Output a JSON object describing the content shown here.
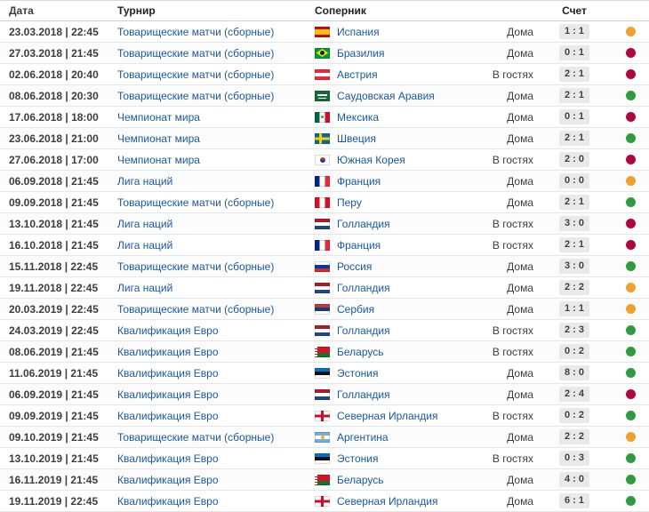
{
  "result_colors": {
    "win": "#2d9c3c",
    "draw": "#efa12e",
    "loss": "#b0063d"
  },
  "table": {
    "headers": {
      "date": "Дата",
      "tournament": "Турнир",
      "opponent": "Соперник",
      "score": "Счет"
    },
    "venue_options": [
      "Дома",
      "В гостях"
    ],
    "rows": [
      {
        "date": "23.03.2018 | 22:45",
        "tournament": "Товарищеские матчи (сборные)",
        "opponent": "Испания",
        "flag": "es",
        "venue": "Дома",
        "score": "1 : 1",
        "result": "draw"
      },
      {
        "date": "27.03.2018 | 21:45",
        "tournament": "Товарищеские матчи (сборные)",
        "opponent": "Бразилия",
        "flag": "br",
        "venue": "Дома",
        "score": "0 : 1",
        "result": "loss"
      },
      {
        "date": "02.06.2018 | 20:40",
        "tournament": "Товарищеские матчи (сборные)",
        "opponent": "Австрия",
        "flag": "at",
        "venue": "В гостях",
        "score": "2 : 1",
        "result": "loss"
      },
      {
        "date": "08.06.2018 | 20:30",
        "tournament": "Товарищеские матчи (сборные)",
        "opponent": "Саудовская Аравия",
        "flag": "sa",
        "venue": "Дома",
        "score": "2 : 1",
        "result": "win"
      },
      {
        "date": "17.06.2018 | 18:00",
        "tournament": "Чемпионат мира",
        "opponent": "Мексика",
        "flag": "mx",
        "venue": "Дома",
        "score": "0 : 1",
        "result": "loss"
      },
      {
        "date": "23.06.2018 | 21:00",
        "tournament": "Чемпионат мира",
        "opponent": "Швеция",
        "flag": "se",
        "venue": "Дома",
        "score": "2 : 1",
        "result": "win"
      },
      {
        "date": "27.06.2018 | 17:00",
        "tournament": "Чемпионат мира",
        "opponent": "Южная Корея",
        "flag": "kr",
        "venue": "В гостях",
        "score": "2 : 0",
        "result": "loss"
      },
      {
        "date": "06.09.2018 | 21:45",
        "tournament": "Лига наций",
        "opponent": "Франция",
        "flag": "fr",
        "venue": "Дома",
        "score": "0 : 0",
        "result": "draw"
      },
      {
        "date": "09.09.2018 | 21:45",
        "tournament": "Товарищеские матчи (сборные)",
        "opponent": "Перу",
        "flag": "pe",
        "venue": "Дома",
        "score": "2 : 1",
        "result": "win"
      },
      {
        "date": "13.10.2018 | 21:45",
        "tournament": "Лига наций",
        "opponent": "Голландия",
        "flag": "nl",
        "venue": "В гостях",
        "score": "3 : 0",
        "result": "loss"
      },
      {
        "date": "16.10.2018 | 21:45",
        "tournament": "Лига наций",
        "opponent": "Франция",
        "flag": "fr",
        "venue": "В гостях",
        "score": "2 : 1",
        "result": "loss"
      },
      {
        "date": "15.11.2018 | 22:45",
        "tournament": "Товарищеские матчи (сборные)",
        "opponent": "Россия",
        "flag": "ru",
        "venue": "Дома",
        "score": "3 : 0",
        "result": "win"
      },
      {
        "date": "19.11.2018 | 22:45",
        "tournament": "Лига наций",
        "opponent": "Голландия",
        "flag": "nl",
        "venue": "Дома",
        "score": "2 : 2",
        "result": "draw"
      },
      {
        "date": "20.03.2019 | 22:45",
        "tournament": "Товарищеские матчи (сборные)",
        "opponent": "Сербия",
        "flag": "rs",
        "venue": "Дома",
        "score": "1 : 1",
        "result": "draw"
      },
      {
        "date": "24.03.2019 | 22:45",
        "tournament": "Квалификация Евро",
        "opponent": "Голландия",
        "flag": "nl",
        "venue": "В гостях",
        "score": "2 : 3",
        "result": "win"
      },
      {
        "date": "08.06.2019 | 21:45",
        "tournament": "Квалификация Евро",
        "opponent": "Беларусь",
        "flag": "by",
        "venue": "В гостях",
        "score": "0 : 2",
        "result": "win"
      },
      {
        "date": "11.06.2019 | 21:45",
        "tournament": "Квалификация Евро",
        "opponent": "Эстония",
        "flag": "ee",
        "venue": "Дома",
        "score": "8 : 0",
        "result": "win"
      },
      {
        "date": "06.09.2019 | 21:45",
        "tournament": "Квалификация Евро",
        "opponent": "Голландия",
        "flag": "nl",
        "venue": "Дома",
        "score": "2 : 4",
        "result": "loss"
      },
      {
        "date": "09.09.2019 | 21:45",
        "tournament": "Квалификация Евро",
        "opponent": "Северная Ирландия",
        "flag": "ni",
        "venue": "В гостях",
        "score": "0 : 2",
        "result": "win"
      },
      {
        "date": "09.10.2019 | 21:45",
        "tournament": "Товарищеские матчи (сборные)",
        "opponent": "Аргентина",
        "flag": "ar",
        "venue": "Дома",
        "score": "2 : 2",
        "result": "draw"
      },
      {
        "date": "13.10.2019 | 21:45",
        "tournament": "Квалификация Евро",
        "opponent": "Эстония",
        "flag": "ee",
        "venue": "В гостях",
        "score": "0 : 3",
        "result": "win"
      },
      {
        "date": "16.11.2019 | 21:45",
        "tournament": "Квалификация Евро",
        "opponent": "Беларусь",
        "flag": "by",
        "venue": "Дома",
        "score": "4 : 0",
        "result": "win"
      },
      {
        "date": "19.11.2019 | 22:45",
        "tournament": "Квалификация Евро",
        "opponent": "Северная Ирландия",
        "flag": "ni",
        "venue": "Дома",
        "score": "6 : 1",
        "result": "win"
      }
    ]
  }
}
